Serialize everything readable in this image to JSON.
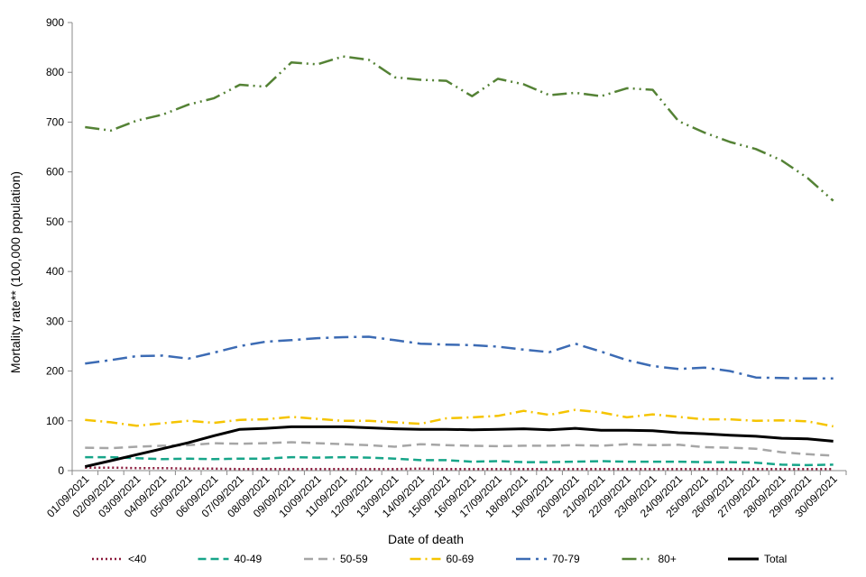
{
  "chart_data": {
    "type": "line",
    "title": "",
    "xlabel": "Date of death",
    "ylabel": "Mortality rate** (100,000 population)",
    "ylim": [
      0,
      900
    ],
    "yticks": [
      "0",
      "100",
      "200",
      "300",
      "400",
      "500",
      "600",
      "700",
      "800",
      "900"
    ],
    "grid": false,
    "legend_position": "bottom",
    "categories": [
      "01/09/2021",
      "02/09/2021",
      "03/09/2021",
      "04/09/2021",
      "05/09/2021",
      "06/09/2021",
      "07/09/2021",
      "08/09/2021",
      "09/09/2021",
      "10/09/2021",
      "11/09/2021",
      "12/09/2021",
      "13/09/2021",
      "14/09/2021",
      "15/09/2021",
      "16/09/2021",
      "17/09/2021",
      "18/09/2021",
      "19/09/2021",
      "20/09/2021",
      "21/09/2021",
      "22/09/2021",
      "23/09/2021",
      "24/09/2021",
      "25/09/2021",
      "26/09/2021",
      "27/09/2021",
      "28/09/2021",
      "29/09/2021",
      "30/09/2021"
    ],
    "series": [
      {
        "name": "<40",
        "color": "#8B1A3C",
        "dash": "2,3",
        "width": 2.5,
        "values": [
          6,
          6,
          5,
          5,
          4,
          4,
          3,
          3,
          3,
          3,
          3,
          3,
          3,
          4,
          3,
          3,
          3,
          3,
          3,
          3,
          3,
          3,
          3,
          3,
          3,
          3,
          3,
          3,
          3,
          3
        ]
      },
      {
        "name": "40-49",
        "color": "#17A589",
        "dash": "9,5",
        "width": 2.5,
        "values": [
          27,
          27,
          25,
          23,
          24,
          23,
          24,
          24,
          27,
          26,
          27,
          26,
          24,
          21,
          21,
          18,
          19,
          17,
          17,
          18,
          19,
          18,
          18,
          18,
          17,
          17,
          16,
          12,
          11,
          12
        ]
      },
      {
        "name": "50-59",
        "color": "#A6A6A6",
        "dash": "10,6",
        "width": 2.5,
        "values": [
          46,
          45,
          48,
          50,
          51,
          55,
          54,
          55,
          57,
          55,
          53,
          51,
          48,
          53,
          51,
          50,
          49,
          50,
          50,
          51,
          50,
          53,
          51,
          52,
          47,
          46,
          44,
          37,
          33,
          30
        ]
      },
      {
        "name": "60-69",
        "color": "#F5C400",
        "dash": "12,5,2,5",
        "width": 2.5,
        "values": [
          102,
          97,
          90,
          95,
          100,
          96,
          102,
          103,
          108,
          104,
          100,
          100,
          97,
          94,
          105,
          107,
          110,
          120,
          112,
          122,
          117,
          107,
          113,
          108,
          103,
          103,
          100,
          101,
          99,
          89
        ]
      },
      {
        "name": "70-79",
        "color": "#3C6BB4",
        "dash": "16,6,3,6",
        "width": 2.5,
        "values": [
          215,
          222,
          230,
          231,
          225,
          237,
          250,
          259,
          262,
          266,
          268,
          269,
          262,
          255,
          253,
          252,
          249,
          243,
          238,
          255,
          239,
          222,
          210,
          204,
          207,
          200,
          187,
          186,
          185,
          185
        ]
      },
      {
        "name": "80+",
        "color": "#548235",
        "dash": "16,5,2,5,2,5",
        "width": 2.5,
        "values": [
          690,
          683,
          703,
          715,
          735,
          748,
          775,
          771,
          820,
          816,
          832,
          825,
          790,
          785,
          783,
          752,
          787,
          776,
          754,
          759,
          752,
          768,
          765,
          702,
          679,
          660,
          646,
          623,
          588,
          542
        ]
      },
      {
        "name": "Total",
        "color": "#000000",
        "dash": "",
        "width": 3,
        "values": [
          8,
          20,
          32,
          44,
          56,
          70,
          83,
          85,
          88,
          88,
          88,
          86,
          84,
          83,
          83,
          82,
          83,
          84,
          82,
          85,
          81,
          81,
          80,
          76,
          74,
          71,
          69,
          65,
          64,
          59
        ]
      }
    ]
  }
}
